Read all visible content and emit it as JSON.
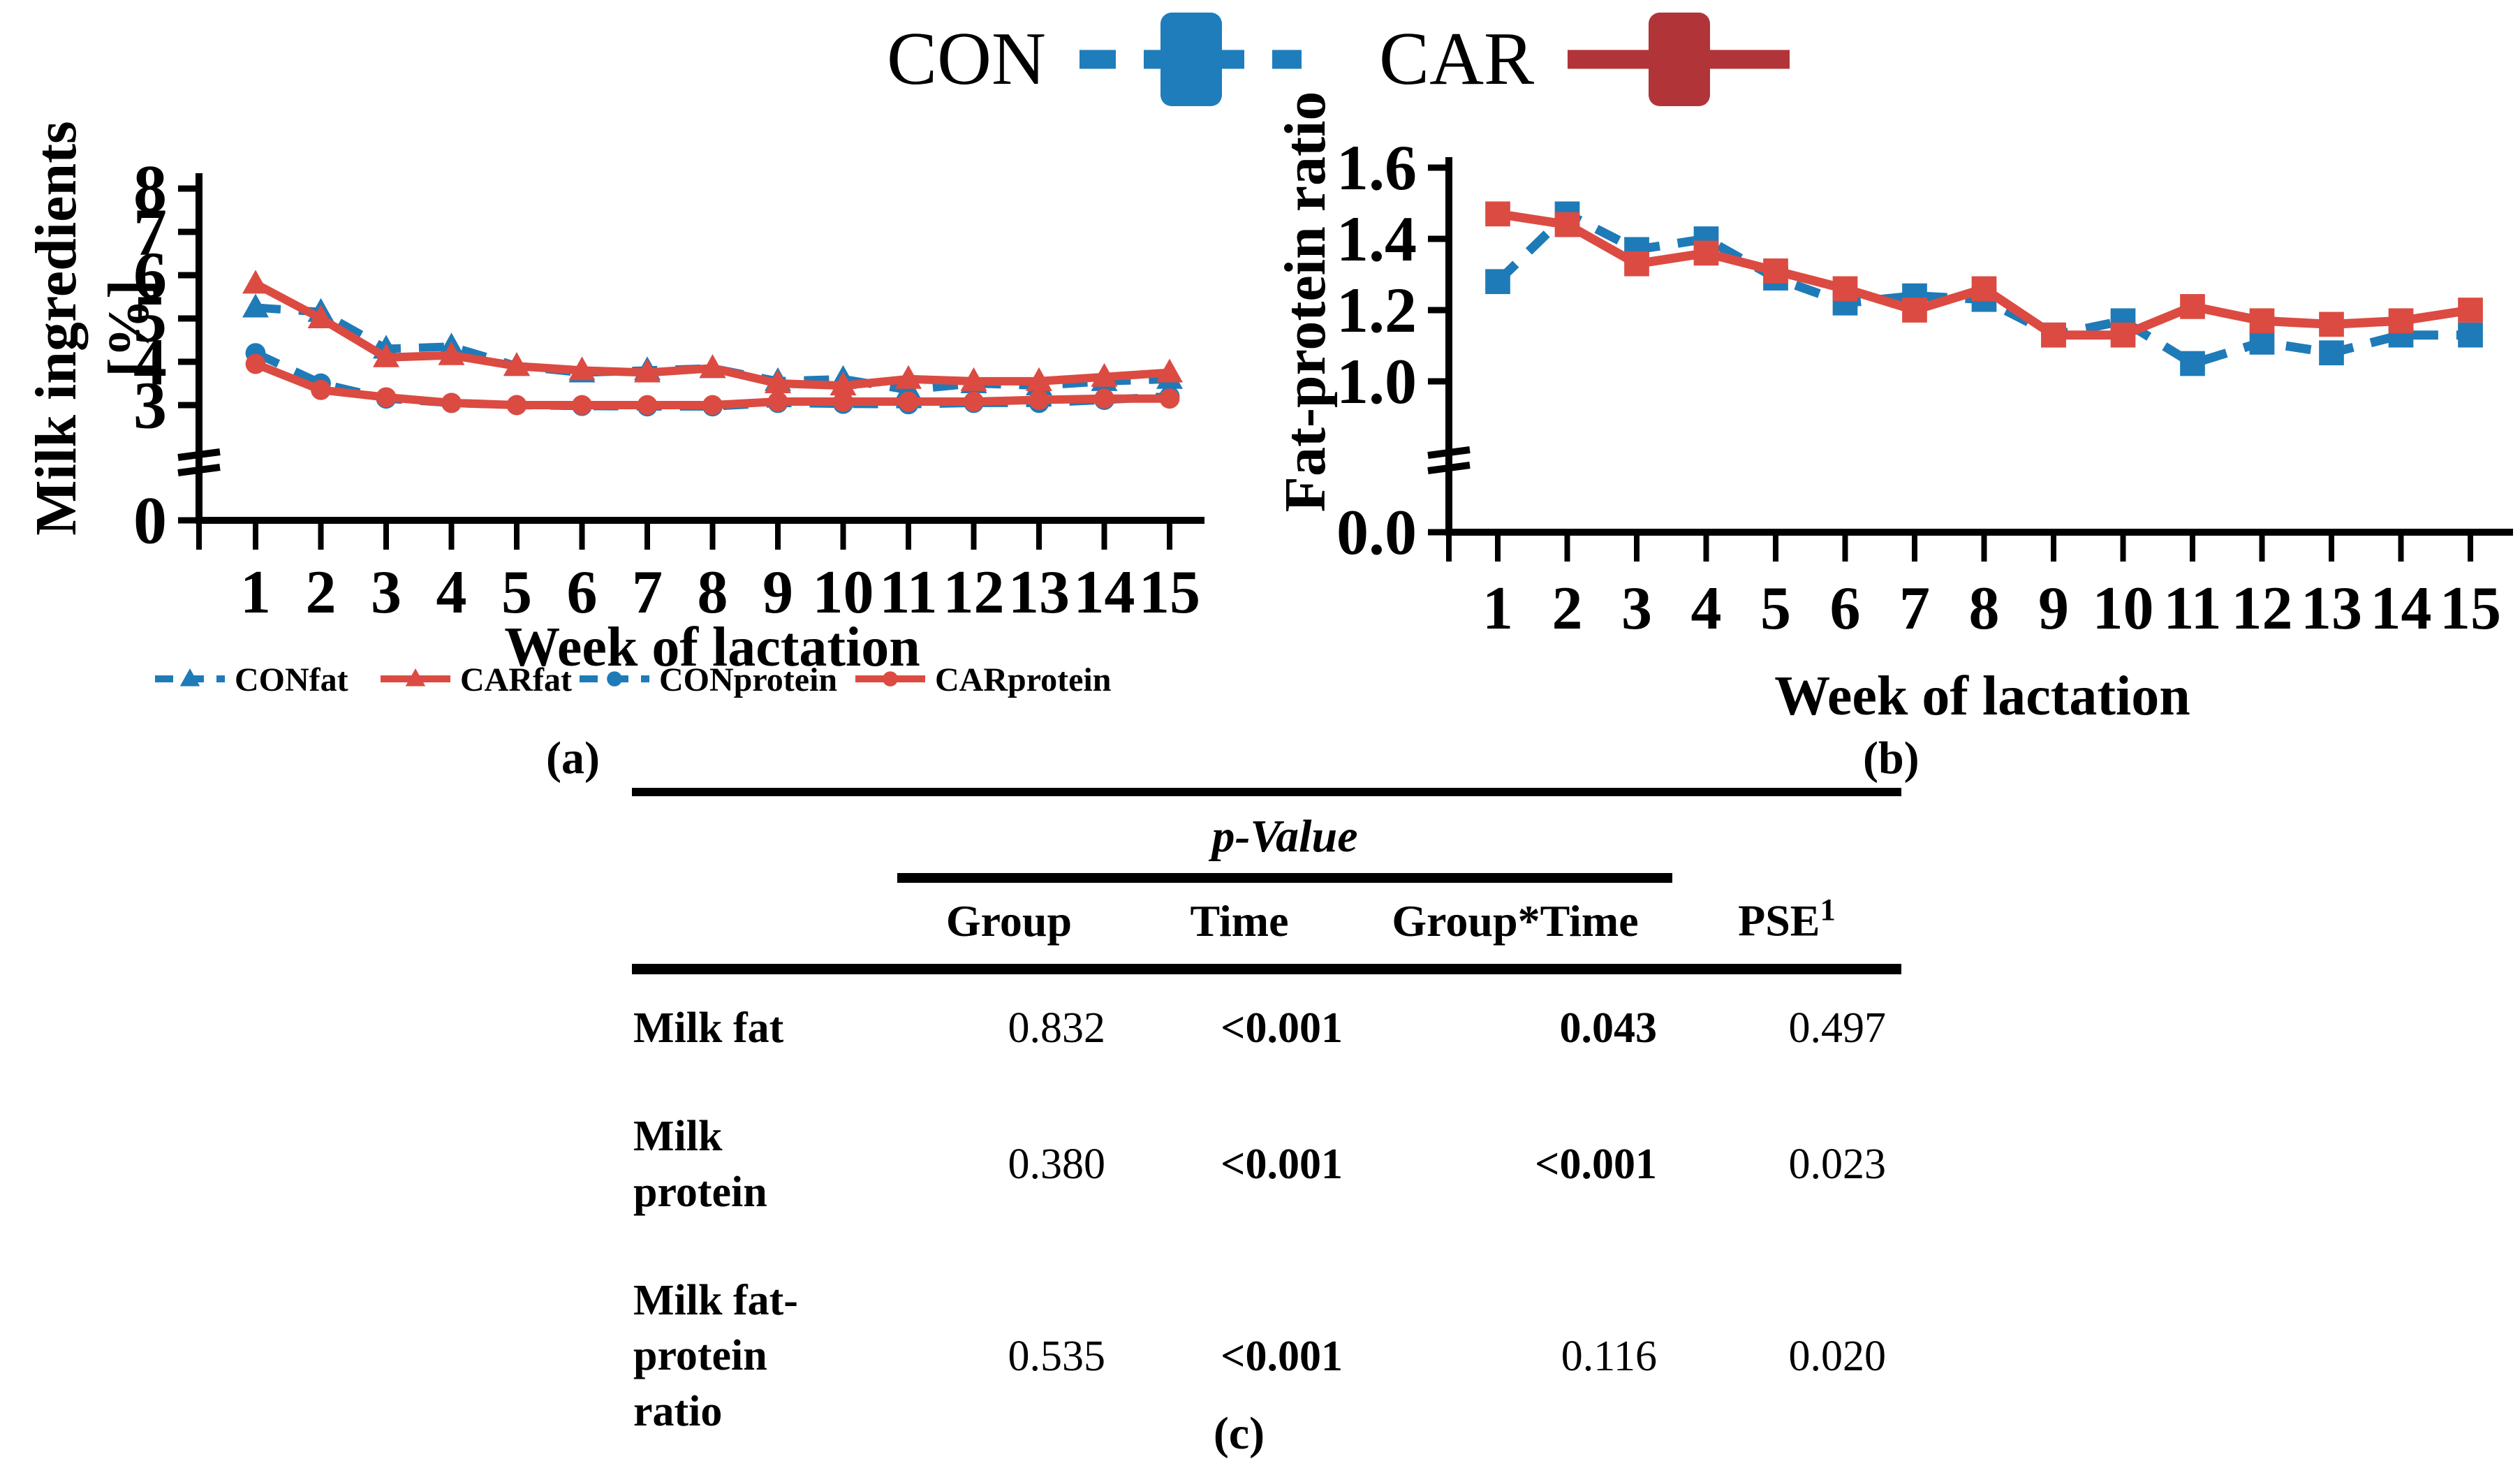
{
  "colors": {
    "con_blue": "#1F7AB8",
    "car_red": "#DC4B42",
    "car_legend_red": "#B03438",
    "axis_black": "#000000"
  },
  "top_legend": {
    "items": [
      {
        "label": "CON",
        "color": "#1F7DBB",
        "dashed": true
      },
      {
        "label": "CAR",
        "color": "#B03438",
        "dashed": false
      }
    ]
  },
  "panel_labels": {
    "a": "(a)",
    "b": "(b)",
    "c": "(c)"
  },
  "chart_data": [
    {
      "id": "a",
      "type": "line",
      "ylabel_lines": [
        "Milk ingredients",
        "[%]"
      ],
      "xlabel": "Week of lactation",
      "x": [
        1,
        2,
        3,
        4,
        5,
        6,
        7,
        8,
        9,
        10,
        11,
        12,
        13,
        14,
        15
      ],
      "y_ticks": [
        "8",
        "7",
        "6",
        "5",
        "4",
        "3",
        "0"
      ],
      "axis_break": true,
      "ylim_shown": [
        0,
        8
      ],
      "grid": false,
      "legend_position": "bottom",
      "series": [
        {
          "name": "CONfat",
          "color": "#1F7AB8",
          "dashed": true,
          "marker": "triangle",
          "values": [
            5.25,
            5.15,
            4.3,
            4.35,
            3.9,
            3.75,
            3.8,
            3.85,
            3.55,
            3.6,
            3.35,
            3.5,
            3.45,
            3.55,
            3.6
          ]
        },
        {
          "name": "CARfat",
          "color": "#DC4B42",
          "dashed": false,
          "marker": "triangle",
          "values": [
            5.8,
            5.0,
            4.1,
            4.15,
            3.9,
            3.8,
            3.75,
            3.85,
            3.5,
            3.45,
            3.6,
            3.55,
            3.55,
            3.65,
            3.75
          ]
        },
        {
          "name": "CONprotein",
          "color": "#1F7AB8",
          "dashed": true,
          "marker": "circle",
          "values": [
            4.2,
            3.5,
            3.15,
            3.05,
            3.0,
            2.98,
            2.97,
            2.97,
            3.05,
            3.03,
            3.02,
            3.05,
            3.05,
            3.12,
            3.2
          ]
        },
        {
          "name": "CARprotein",
          "color": "#DC4B42",
          "dashed": false,
          "marker": "circle",
          "values": [
            3.95,
            3.35,
            3.18,
            3.05,
            3.0,
            3.0,
            3.0,
            3.0,
            3.08,
            3.08,
            3.08,
            3.08,
            3.12,
            3.15,
            3.15
          ]
        }
      ]
    },
    {
      "id": "b",
      "type": "line",
      "ylabel_lines": [
        "Fat-protein ratio"
      ],
      "xlabel": "Week of lactation",
      "x": [
        1,
        2,
        3,
        4,
        5,
        6,
        7,
        8,
        9,
        10,
        11,
        12,
        13,
        14,
        15
      ],
      "y_ticks": [
        "1.6",
        "1.4",
        "1.2",
        "1.0",
        "0.0"
      ],
      "axis_break": true,
      "ylim_shown": [
        0.0,
        1.6
      ],
      "grid": false,
      "legend_position": "none",
      "series": [
        {
          "name": "CON",
          "color": "#1F7AB8",
          "dashed": true,
          "marker": "square",
          "values": [
            1.28,
            1.47,
            1.37,
            1.4,
            1.29,
            1.22,
            1.24,
            1.23,
            1.13,
            1.17,
            1.05,
            1.11,
            1.08,
            1.13,
            1.13
          ]
        },
        {
          "name": "CAR",
          "color": "#DC4B42",
          "dashed": false,
          "marker": "square",
          "values": [
            1.47,
            1.44,
            1.33,
            1.36,
            1.31,
            1.26,
            1.2,
            1.26,
            1.13,
            1.13,
            1.21,
            1.17,
            1.16,
            1.17,
            1.2
          ]
        }
      ]
    }
  ],
  "table": {
    "p_value_header": "p-Value",
    "columns": [
      {
        "text": "Group"
      },
      {
        "text": "Time"
      },
      {
        "text": "Group*Time"
      },
      {
        "text": "PSE",
        "sup": "1"
      }
    ],
    "rows": [
      {
        "label_lines": [
          "Milk fat"
        ],
        "values": [
          {
            "text": "0.832",
            "bold": false
          },
          {
            "text": "<0.001",
            "bold": true
          },
          {
            "text": "0.043",
            "bold": true
          },
          {
            "text": "0.497",
            "bold": false
          }
        ]
      },
      {
        "label_lines": [
          "Milk",
          "protein"
        ],
        "values": [
          {
            "text": "0.380",
            "bold": false
          },
          {
            "text": "<0.001",
            "bold": true
          },
          {
            "text": "<0.001",
            "bold": true
          },
          {
            "text": "0.023",
            "bold": false
          }
        ]
      },
      {
        "label_lines": [
          "Milk fat-",
          "protein",
          "ratio"
        ],
        "values": [
          {
            "text": "0.535",
            "bold": false
          },
          {
            "text": "<0.001",
            "bold": true
          },
          {
            "text": "0.116",
            "bold": false
          },
          {
            "text": "0.020",
            "bold": false
          }
        ]
      }
    ]
  }
}
